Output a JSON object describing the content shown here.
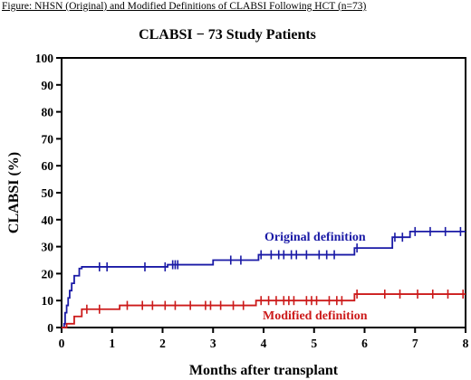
{
  "figure_title": "Figure: NHSN (Original) and Modified Definitions of CLABSI Following HCT (n=73)",
  "chart_data": {
    "type": "line",
    "title": "CLABSI − 73 Study Patients",
    "xlabel": "Months after transplant",
    "ylabel": "CLABSI (%)",
    "xlim": [
      0,
      8
    ],
    "ylim": [
      0,
      100
    ],
    "x_ticks": [
      0,
      1,
      2,
      3,
      4,
      5,
      6,
      7,
      8
    ],
    "y_ticks": [
      0,
      10,
      20,
      30,
      40,
      50,
      60,
      70,
      80,
      90,
      100
    ],
    "grid": false,
    "series": [
      {
        "name": "Original definition",
        "color": "#1a1aa6",
        "step": [
          [
            0,
            0
          ],
          [
            0.05,
            1.4
          ],
          [
            0.07,
            5.5
          ],
          [
            0.1,
            8.2
          ],
          [
            0.13,
            11.0
          ],
          [
            0.16,
            13.7
          ],
          [
            0.2,
            16.4
          ],
          [
            0.25,
            19.2
          ],
          [
            0.35,
            21.9
          ],
          [
            0.4,
            22.5
          ],
          [
            2.1,
            23.3
          ],
          [
            3.0,
            25.0
          ],
          [
            3.9,
            27.0
          ],
          [
            5.8,
            29.5
          ],
          [
            6.55,
            33.5
          ],
          [
            6.9,
            35.6
          ],
          [
            8.0,
            35.6
          ]
        ],
        "censor_x": [
          0.75,
          0.9,
          1.65,
          2.05,
          2.2,
          2.25,
          2.3,
          3.35,
          3.55,
          3.95,
          4.15,
          4.3,
          4.4,
          4.55,
          4.65,
          4.85,
          5.1,
          5.25,
          5.4,
          5.85,
          6.6,
          6.75,
          7.0,
          7.3,
          7.6,
          7.9
        ]
      },
      {
        "name": "Modified definition",
        "color": "#cc1a1a",
        "step": [
          [
            0,
            0
          ],
          [
            0.1,
            1.4
          ],
          [
            0.25,
            4.1
          ],
          [
            0.4,
            6.8
          ],
          [
            1.15,
            8.2
          ],
          [
            3.85,
            10.0
          ],
          [
            5.8,
            12.4
          ],
          [
            8.0,
            12.4
          ]
        ],
        "censor_x": [
          0.5,
          0.75,
          1.3,
          1.6,
          1.8,
          2.05,
          2.25,
          2.55,
          2.85,
          2.95,
          3.15,
          3.4,
          3.6,
          3.95,
          4.1,
          4.25,
          4.4,
          4.5,
          4.6,
          4.85,
          4.95,
          5.05,
          5.3,
          5.45,
          5.55,
          5.85,
          6.4,
          6.7,
          7.05,
          7.35,
          7.65,
          7.95
        ]
      }
    ]
  }
}
